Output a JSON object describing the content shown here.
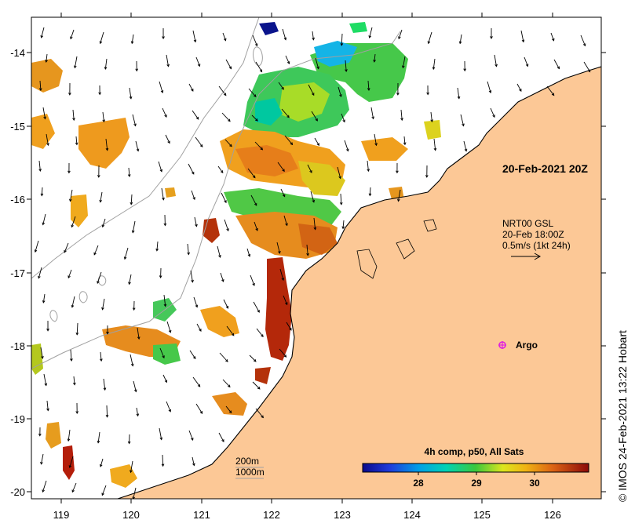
{
  "map": {
    "x_ticks": [
      "119",
      "120",
      "121",
      "122",
      "123",
      "124",
      "125",
      "126"
    ],
    "y_ticks": [
      "-14",
      "-15",
      "-16",
      "-17",
      "-18",
      "-19",
      "-20"
    ],
    "date_label": "20-Feb-2021 20Z",
    "current_info": {
      "source": "NRT00 GSL",
      "time": "20-Feb 18:00Z",
      "scale": "0.5m/s (1kt 24h)"
    },
    "argo_label": "Argo",
    "depth_contours": [
      "200m",
      "1000m"
    ],
    "colorbar": {
      "title": "4h comp, p50, All Sats",
      "tick_labels": [
        "28",
        "29",
        "30"
      ]
    },
    "credit": "© IMOS 24-Feb-2021 13:22 Hobart",
    "colors": {
      "land": "#fcc896",
      "ocean": "#ffffff",
      "frame": "#000000",
      "contour": "#a0a0a0",
      "argo": "#e020e0"
    }
  }
}
